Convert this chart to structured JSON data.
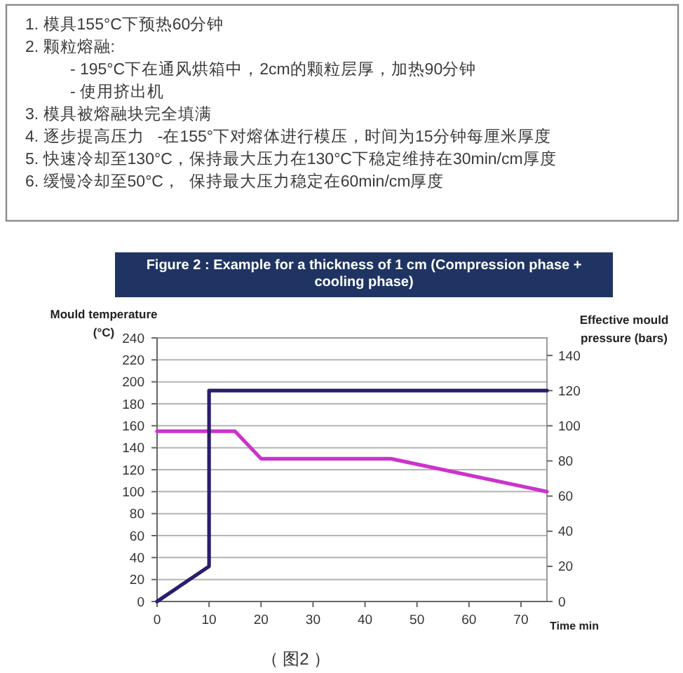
{
  "chart_data": {
    "type": "line",
    "title": "Figure 2 : Example for a thickness of 1 cm (Compression phase + cooling phase)",
    "xlabel": "Time min",
    "ylabel": "Mould temperature (°C)",
    "y2label": "Effective mould pressure (bars)",
    "xlim": [
      0,
      75
    ],
    "xticks": [
      0,
      10,
      20,
      30,
      40,
      50,
      60,
      70
    ],
    "ylim": [
      0,
      240
    ],
    "yticks": [
      0,
      20,
      40,
      60,
      80,
      100,
      120,
      140,
      160,
      180,
      200,
      220,
      240
    ],
    "y2lim": [
      0,
      150
    ],
    "y2ticks": [
      0,
      20,
      40,
      60,
      80,
      100,
      120,
      140
    ],
    "grid": "y",
    "series": [
      {
        "color": "#cc33cc",
        "x": [
          0,
          15,
          20,
          45,
          75
        ],
        "values": [
          155,
          155,
          130,
          130,
          100
        ]
      },
      {
        "color": "#2b1d6b",
        "axis": "y2",
        "x": [
          0,
          10,
          10,
          75
        ],
        "values": [
          0,
          20,
          120,
          120
        ]
      }
    ],
    "annotations": [
      "1. 模具155°C下预热60分钟",
      "2. 颗粒熔融:",
      "          - 195°C下在通风烘箱中，2cm的颗粒层厚，加热90分钟",
      "          - 使用挤出机",
      "3. 模具被熔融块完全填满",
      "4. 逐步提高压力   -在155°下对熔体进行模压，时间为15分钟每厘米厚度",
      "5. 快速冷却至130°C，保持最大压力在130°C下稳定维持在30min/cm厚度",
      "6. 缓慢冷却至50°C，  保持最大压力稳定在60min/cm厚度",
      "（ 图2 ）"
    ]
  }
}
